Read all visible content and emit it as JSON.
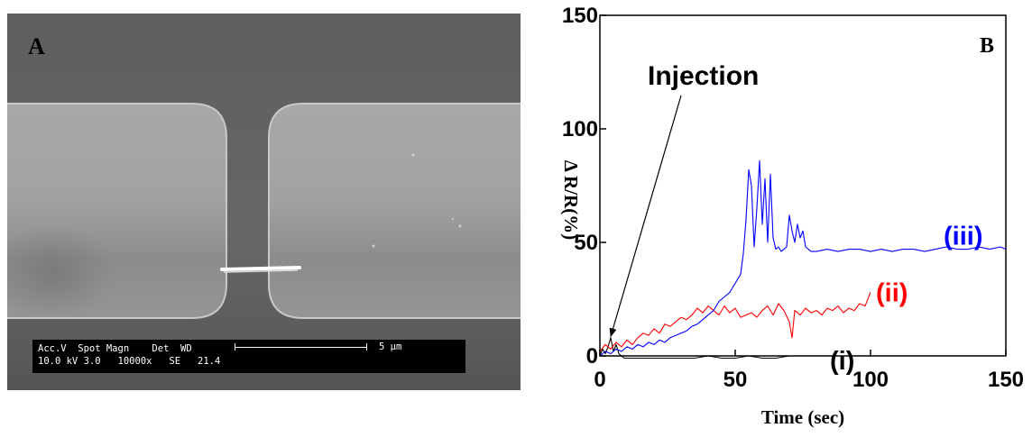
{
  "panel_a": {
    "letter": "A",
    "databar": {
      "header": "Acc.V  Spot Magn    Det  WD",
      "values": "10.0 kV 3.0   10000x   SE   21.4",
      "scale_label": "5 µm"
    }
  },
  "chart_data": {
    "type": "line",
    "panel_letter": "B",
    "title": "",
    "xlabel": "Time (sec)",
    "ylabel": "Δ R/R(%)",
    "xlim": [
      0,
      150
    ],
    "ylim": [
      0,
      150
    ],
    "xticks": [
      0,
      50,
      100,
      150
    ],
    "yticks": [
      0,
      50,
      100,
      150
    ],
    "grid": false,
    "annotation": {
      "text": "Injection",
      "x": 4,
      "y": 7
    },
    "series": [
      {
        "name": "(i)",
        "color": "#000000",
        "x": [
          0,
          1,
          2,
          3,
          4,
          5,
          6,
          7,
          8,
          9,
          10,
          12,
          15,
          20,
          25,
          30,
          35,
          40,
          45,
          50,
          55,
          60,
          65,
          70,
          75,
          78
        ],
        "values": [
          0,
          3,
          1,
          4,
          8,
          2,
          5,
          1,
          0,
          -1,
          -1,
          -1,
          -1,
          -1,
          -1,
          -1,
          -1,
          0,
          -1,
          -1,
          0,
          -1,
          -1,
          0,
          0,
          0
        ]
      },
      {
        "name": "(ii)",
        "color": "#ff0000",
        "x": [
          0,
          2,
          4,
          6,
          8,
          10,
          12,
          14,
          16,
          18,
          20,
          22,
          24,
          26,
          28,
          30,
          32,
          34,
          36,
          38,
          40,
          42,
          44,
          46,
          48,
          50,
          52,
          54,
          56,
          58,
          60,
          62,
          64,
          66,
          68,
          70,
          71,
          72,
          74,
          76,
          78,
          80,
          82,
          84,
          86,
          88,
          90,
          92,
          94,
          96,
          98,
          100
        ],
        "values": [
          2,
          5,
          3,
          6,
          4,
          7,
          5,
          8,
          10,
          9,
          12,
          10,
          14,
          13,
          15,
          17,
          16,
          18,
          21,
          19,
          22,
          20,
          18,
          22,
          19,
          21,
          17,
          18,
          19,
          17,
          20,
          22,
          18,
          23,
          20,
          15,
          8,
          20,
          18,
          21,
          19,
          20,
          18,
          21,
          20,
          22,
          19,
          21,
          20,
          23,
          22,
          28
        ]
      },
      {
        "name": "(iii)",
        "color": "#0000ff",
        "x": [
          0,
          2,
          4,
          6,
          8,
          10,
          12,
          14,
          16,
          18,
          20,
          22,
          24,
          26,
          28,
          30,
          32,
          34,
          36,
          38,
          40,
          42,
          44,
          46,
          48,
          50,
          52,
          53,
          54,
          55,
          56,
          57,
          58,
          59,
          60,
          61,
          62,
          63,
          64,
          65,
          66,
          67,
          68,
          69,
          70,
          71,
          72,
          73,
          74,
          75,
          76,
          78,
          80,
          84,
          88,
          92,
          96,
          100,
          104,
          108,
          112,
          116,
          120,
          124,
          128,
          132,
          136,
          140,
          144,
          148,
          150
        ],
        "values": [
          0,
          2,
          1,
          3,
          2,
          4,
          3,
          5,
          4,
          6,
          5,
          7,
          6,
          8,
          9,
          10,
          11,
          13,
          14,
          16,
          18,
          20,
          24,
          26,
          28,
          32,
          36,
          45,
          60,
          82,
          75,
          48,
          65,
          86,
          58,
          78,
          50,
          80,
          52,
          47,
          48,
          46,
          47,
          48,
          62,
          55,
          50,
          58,
          52,
          55,
          48,
          46,
          46,
          47,
          46,
          47,
          47,
          46,
          47,
          46,
          47,
          47,
          46,
          47,
          48,
          47,
          47,
          48,
          47,
          48,
          47
        ]
      }
    ]
  }
}
